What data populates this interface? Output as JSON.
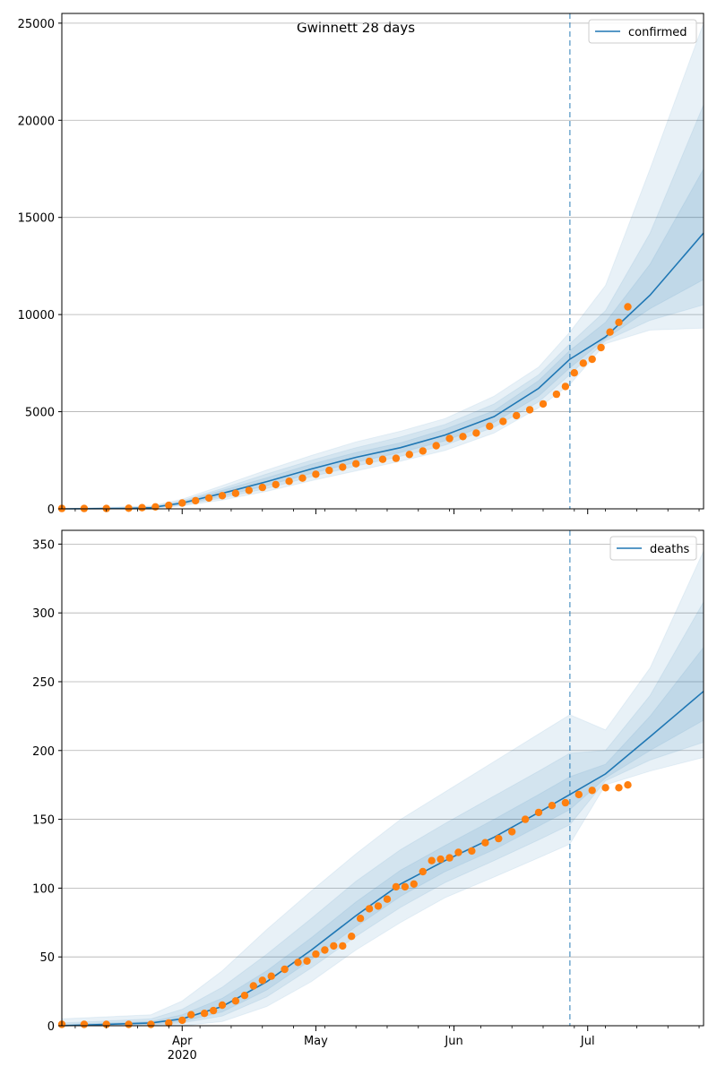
{
  "title": "Gwinnett 28 days",
  "colors": {
    "model_line": "#1f77b4",
    "observed_points": "#ff7f0e",
    "band": "#1f77b4",
    "grid": "#b0b0b0",
    "axis": "#000000"
  },
  "chart_data": [
    {
      "type": "line",
      "name": "confirmed-panel",
      "legend": "confirmed",
      "legend_position": "top-right",
      "grid": "horizontal",
      "x_axis": {
        "start": "2020-03-05",
        "end": "2020-07-27",
        "tick_labels": [
          "",
          "",
          ""
        ],
        "year_label": ""
      },
      "ylim": [
        0,
        25500
      ],
      "yticks": [
        0,
        5000,
        10000,
        15000,
        20000,
        25000
      ],
      "ytick_labels": [
        "0",
        "5000",
        "10000",
        "15000",
        "20000",
        "25000"
      ],
      "forecast_start": "2020-06-27",
      "model_line": {
        "x": [
          "2020-03-05",
          "2020-03-20",
          "2020-03-25",
          "2020-04-01",
          "2020-04-10",
          "2020-04-20",
          "2020-04-30",
          "2020-05-10",
          "2020-05-20",
          "2020-05-30",
          "2020-06-10",
          "2020-06-20",
          "2020-06-27",
          "2020-07-05",
          "2020-07-15",
          "2020-07-27"
        ],
        "y": [
          0,
          20,
          60,
          300,
          800,
          1400,
          2050,
          2650,
          3150,
          3800,
          4750,
          6200,
          7700,
          8850,
          11000,
          14200
        ]
      },
      "bands": [
        {
          "x": [
            "2020-03-05",
            "2020-03-25",
            "2020-04-01",
            "2020-04-10",
            "2020-04-20",
            "2020-04-30",
            "2020-05-10",
            "2020-05-20",
            "2020-05-30",
            "2020-06-10",
            "2020-06-20",
            "2020-06-27",
            "2020-07-05",
            "2020-07-15",
            "2020-07-27"
          ],
          "lower": [
            0,
            20,
            150,
            450,
            900,
            1450,
            1950,
            2450,
            3000,
            3900,
            5200,
            6400,
            8500,
            9200,
            9300
          ],
          "upper": [
            0,
            150,
            500,
            1200,
            2000,
            2750,
            3450,
            4000,
            4650,
            5800,
            7300,
            9100,
            11500,
            17500,
            25000
          ]
        },
        {
          "x": [
            "2020-03-05",
            "2020-03-25",
            "2020-04-01",
            "2020-04-10",
            "2020-04-20",
            "2020-04-30",
            "2020-05-10",
            "2020-05-20",
            "2020-05-30",
            "2020-06-10",
            "2020-06-20",
            "2020-06-27",
            "2020-07-05",
            "2020-07-15",
            "2020-07-27"
          ],
          "lower": [
            0,
            35,
            200,
            560,
            1050,
            1650,
            2200,
            2700,
            3280,
            4200,
            5500,
            6900,
            8650,
            9700,
            10500
          ],
          "upper": [
            0,
            110,
            420,
            1050,
            1800,
            2500,
            3150,
            3700,
            4350,
            5400,
            6900,
            8500,
            10200,
            14200,
            20800
          ]
        },
        {
          "x": [
            "2020-03-05",
            "2020-03-25",
            "2020-04-01",
            "2020-04-10",
            "2020-04-20",
            "2020-04-30",
            "2020-05-10",
            "2020-05-20",
            "2020-05-30",
            "2020-06-10",
            "2020-06-20",
            "2020-06-27",
            "2020-07-05",
            "2020-07-15",
            "2020-07-27"
          ],
          "lower": [
            0,
            45,
            240,
            650,
            1200,
            1820,
            2400,
            2900,
            3500,
            4450,
            5800,
            7250,
            8750,
            10300,
            11800
          ],
          "upper": [
            0,
            85,
            360,
            950,
            1600,
            2300,
            2900,
            3400,
            4100,
            5050,
            6600,
            8150,
            9600,
            12600,
            17500
          ]
        }
      ],
      "observed": {
        "x": [
          "2020-03-05",
          "2020-03-10",
          "2020-03-15",
          "2020-03-20",
          "2020-03-23",
          "2020-03-26",
          "2020-03-29",
          "2020-04-01",
          "2020-04-04",
          "2020-04-07",
          "2020-04-10",
          "2020-04-13",
          "2020-04-16",
          "2020-04-19",
          "2020-04-22",
          "2020-04-25",
          "2020-04-28",
          "2020-05-01",
          "2020-05-04",
          "2020-05-07",
          "2020-05-10",
          "2020-05-13",
          "2020-05-16",
          "2020-05-19",
          "2020-05-22",
          "2020-05-25",
          "2020-05-28",
          "2020-05-31",
          "2020-06-03",
          "2020-06-06",
          "2020-06-09",
          "2020-06-12",
          "2020-06-15",
          "2020-06-18",
          "2020-06-21",
          "2020-06-24",
          "2020-06-26",
          "2020-06-28",
          "2020-06-30",
          "2020-07-02",
          "2020-07-04",
          "2020-07-06",
          "2020-07-08",
          "2020-07-10"
        ],
        "y": [
          20,
          20,
          20,
          30,
          60,
          100,
          180,
          300,
          420,
          560,
          680,
          800,
          950,
          1100,
          1250,
          1420,
          1580,
          1780,
          1980,
          2150,
          2320,
          2450,
          2550,
          2600,
          2800,
          2980,
          3250,
          3620,
          3720,
          3900,
          4250,
          4500,
          4800,
          5100,
          5400,
          5900,
          6300,
          7000,
          7500,
          7700,
          8300,
          9100,
          9600,
          10400
        ]
      }
    },
    {
      "type": "line",
      "name": "deaths-panel",
      "legend": "deaths",
      "legend_position": "top-right",
      "grid": "horizontal",
      "x_axis": {
        "start": "2020-03-05",
        "end": "2020-07-27",
        "tick_labels": [
          "Apr",
          "May",
          "Jun",
          "Jul"
        ],
        "tick_dates": [
          "2020-04-01",
          "2020-05-01",
          "2020-06-01",
          "2020-07-01"
        ],
        "year_label": "2020"
      },
      "ylim": [
        0,
        360
      ],
      "yticks": [
        0,
        50,
        100,
        150,
        200,
        250,
        300,
        350
      ],
      "ytick_labels": [
        "0",
        "50",
        "100",
        "150",
        "200",
        "250",
        "300",
        "350"
      ],
      "forecast_start": "2020-06-27",
      "model_line": {
        "x": [
          "2020-03-05",
          "2020-03-25",
          "2020-04-01",
          "2020-04-10",
          "2020-04-20",
          "2020-04-30",
          "2020-05-10",
          "2020-05-20",
          "2020-05-30",
          "2020-06-10",
          "2020-06-20",
          "2020-06-27",
          "2020-07-05",
          "2020-07-15",
          "2020-07-27"
        ],
        "y": [
          0,
          2,
          5,
          14,
          32,
          55,
          80,
          103,
          120,
          137,
          155,
          168,
          183,
          210,
          243
        ]
      },
      "bands": [
        {
          "x": [
            "2020-03-05",
            "2020-03-25",
            "2020-04-01",
            "2020-04-10",
            "2020-04-20",
            "2020-04-30",
            "2020-05-10",
            "2020-05-20",
            "2020-05-30",
            "2020-06-10",
            "2020-06-20",
            "2020-06-27",
            "2020-07-05",
            "2020-07-15",
            "2020-07-27"
          ],
          "lower": [
            0,
            0,
            0,
            3,
            14,
            32,
            55,
            75,
            93,
            108,
            122,
            132,
            175,
            185,
            195
          ],
          "upper": [
            5,
            8,
            18,
            40,
            70,
            98,
            125,
            150,
            170,
            192,
            212,
            226,
            215,
            260,
            345
          ]
        },
        {
          "x": [
            "2020-03-05",
            "2020-03-25",
            "2020-04-01",
            "2020-04-10",
            "2020-04-20",
            "2020-04-30",
            "2020-05-10",
            "2020-05-20",
            "2020-05-30",
            "2020-06-10",
            "2020-06-20",
            "2020-06-27",
            "2020-07-05",
            "2020-07-15",
            "2020-07-27"
          ],
          "lower": [
            0,
            0,
            2,
            7,
            21,
            42,
            65,
            86,
            104,
            120,
            135,
            146,
            178,
            193,
            206
          ],
          "upper": [
            2,
            5,
            12,
            28,
            52,
            78,
            105,
            128,
            147,
            167,
            185,
            198,
            200,
            240,
            308
          ]
        },
        {
          "x": [
            "2020-03-05",
            "2020-03-25",
            "2020-04-01",
            "2020-04-10",
            "2020-04-20",
            "2020-04-30",
            "2020-05-10",
            "2020-05-20",
            "2020-05-30",
            "2020-06-10",
            "2020-06-20",
            "2020-06-27",
            "2020-07-05",
            "2020-07-15",
            "2020-07-27"
          ],
          "lower": [
            0,
            1,
            3,
            10,
            26,
            48,
            72,
            94,
            112,
            128,
            145,
            157,
            180,
            200,
            222
          ],
          "upper": [
            1,
            3,
            8,
            20,
            40,
            64,
            90,
            113,
            131,
            150,
            168,
            181,
            190,
            225,
            275
          ]
        }
      ],
      "observed": {
        "x": [
          "2020-03-05",
          "2020-03-10",
          "2020-03-15",
          "2020-03-20",
          "2020-03-25",
          "2020-03-29",
          "2020-04-01",
          "2020-04-03",
          "2020-04-06",
          "2020-04-08",
          "2020-04-10",
          "2020-04-13",
          "2020-04-15",
          "2020-04-17",
          "2020-04-19",
          "2020-04-21",
          "2020-04-24",
          "2020-04-27",
          "2020-04-29",
          "2020-05-01",
          "2020-05-03",
          "2020-05-05",
          "2020-05-07",
          "2020-05-09",
          "2020-05-11",
          "2020-05-13",
          "2020-05-15",
          "2020-05-17",
          "2020-05-19",
          "2020-05-21",
          "2020-05-23",
          "2020-05-25",
          "2020-05-27",
          "2020-05-29",
          "2020-05-31",
          "2020-06-02",
          "2020-06-05",
          "2020-06-08",
          "2020-06-11",
          "2020-06-14",
          "2020-06-17",
          "2020-06-20",
          "2020-06-23",
          "2020-06-26",
          "2020-06-29",
          "2020-07-02",
          "2020-07-05",
          "2020-07-08",
          "2020-07-10"
        ],
        "y": [
          1,
          1,
          1,
          1,
          1,
          2,
          4,
          8,
          9,
          11,
          15,
          18,
          22,
          29,
          33,
          36,
          41,
          46,
          47,
          52,
          55,
          58,
          58,
          65,
          78,
          85,
          87,
          92,
          101,
          101,
          103,
          112,
          120,
          121,
          122,
          126,
          127,
          133,
          136,
          141,
          150,
          155,
          160,
          162,
          168,
          171,
          173,
          173,
          175
        ]
      }
    }
  ]
}
